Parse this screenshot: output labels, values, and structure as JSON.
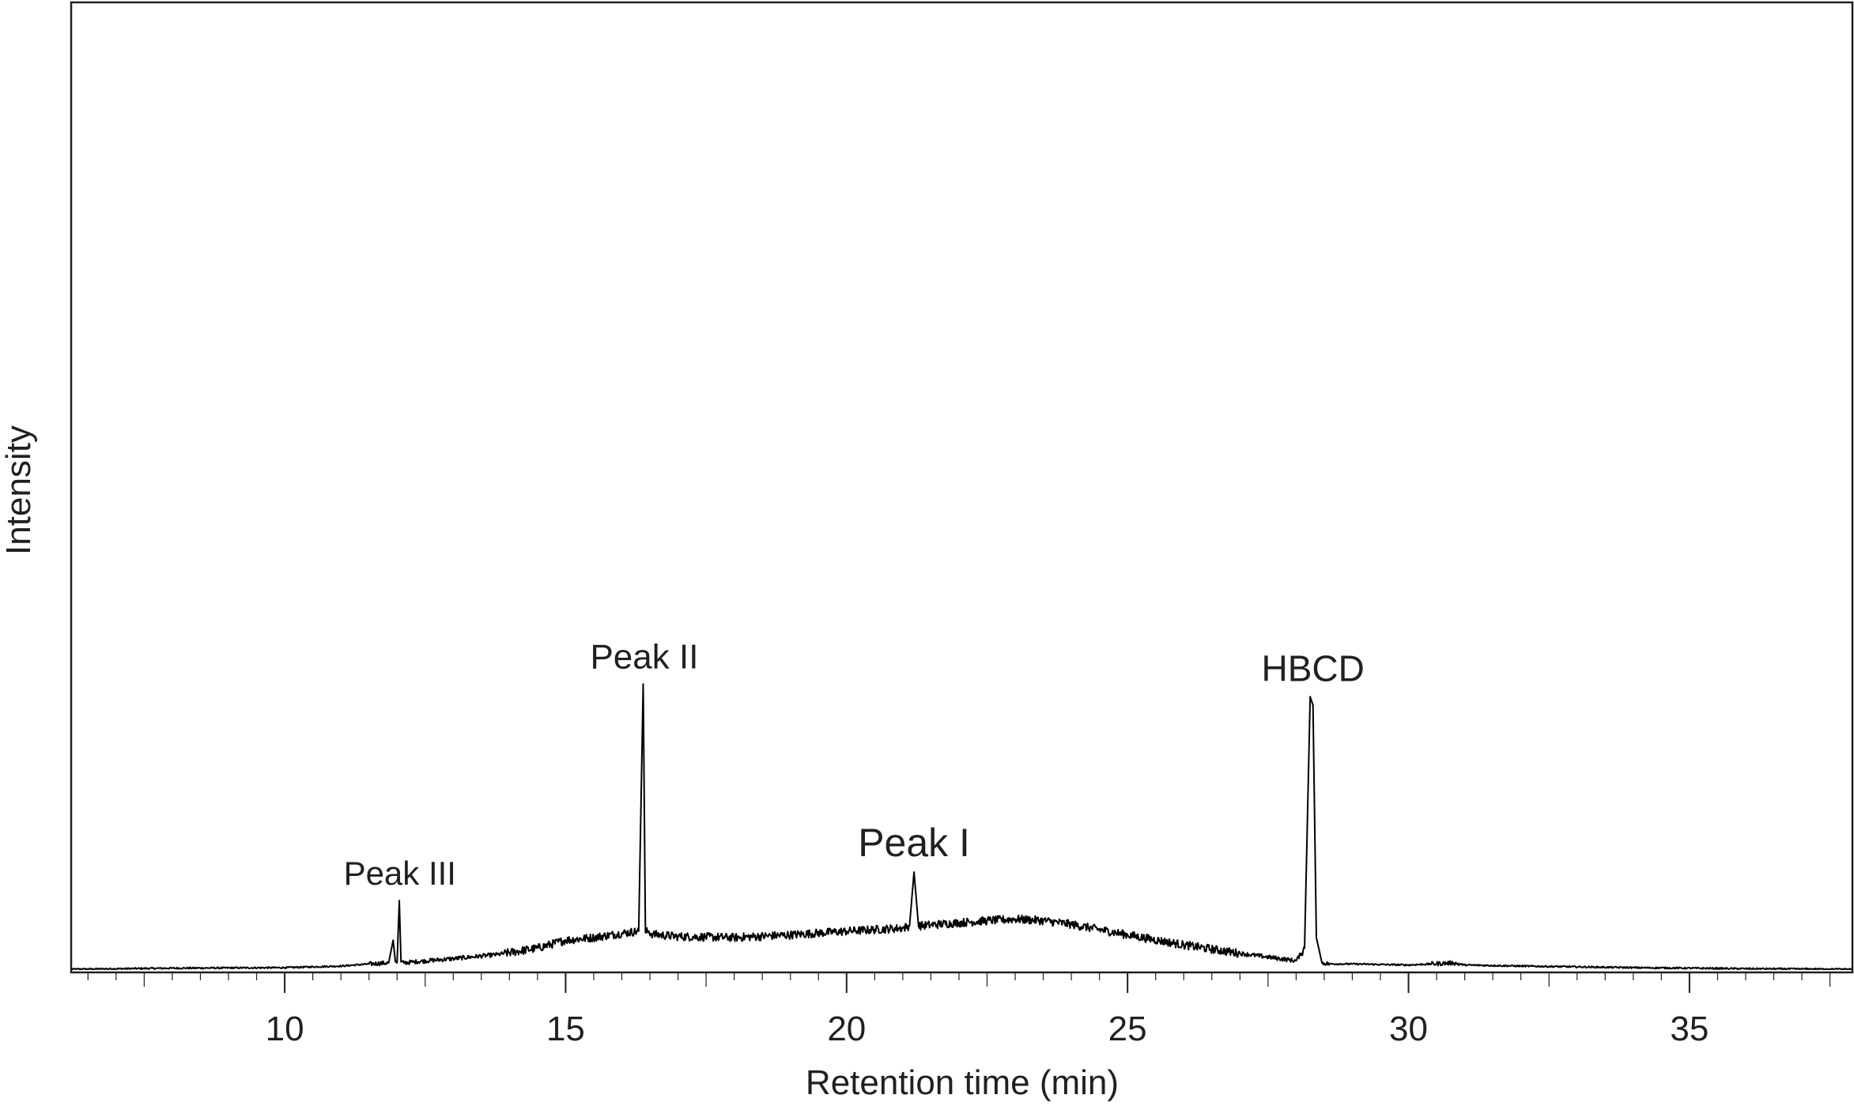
{
  "chart_data": {
    "type": "line",
    "title": "",
    "xlabel": "Retention  time (min)",
    "ylabel": "Intensity",
    "xlim": [
      6.2,
      37.9
    ],
    "ylim": [
      0,
      1000
    ],
    "x_ticks": [
      10,
      15,
      20,
      25,
      30,
      35
    ],
    "x_minor_step": 0.5,
    "y_ticks": [],
    "grid": false,
    "legend": "none",
    "line_color": "#000000",
    "annotations": [
      {
        "text": "Peak III",
        "x": 12.05,
        "y": 130
      },
      {
        "text": "Peak II",
        "x": 16.4,
        "y": 540
      },
      {
        "text": "Peak I",
        "x": 21.2,
        "y": 184
      },
      {
        "text": "HBCD",
        "x": 28.3,
        "y": 516
      }
    ],
    "series": [
      {
        "x": [
          6.2,
          8.0,
          10.0,
          11.0,
          11.5,
          11.85,
          11.93,
          11.97,
          12.0,
          12.04,
          12.07,
          12.12,
          12.3,
          13.0,
          13.8,
          14.5,
          15.0,
          15.5,
          16.0,
          16.3,
          16.38,
          16.42,
          16.47,
          16.55,
          17.0,
          18.0,
          19.0,
          20.0,
          21.0,
          21.12,
          21.2,
          21.28,
          21.5,
          22.0,
          22.5,
          23.0,
          23.5,
          24.0,
          25.0,
          26.0,
          27.0,
          28.0,
          28.15,
          28.25,
          28.3,
          28.36,
          28.46,
          28.6,
          29.0,
          30.0,
          30.8,
          31.0,
          32.0,
          34.0,
          36.0,
          37.9
        ],
        "y": [
          0,
          2,
          3,
          6,
          10,
          12,
          55,
          14,
          12,
          130,
          14,
          12,
          14,
          20,
          28,
          40,
          55,
          60,
          68,
          72,
          540,
          70,
          72,
          66,
          62,
          60,
          65,
          72,
          78,
          82,
          184,
          82,
          84,
          88,
          92,
          95,
          92,
          85,
          65,
          46,
          30,
          16,
          40,
          516,
          500,
          60,
          12,
          10,
          10,
          8,
          12,
          8,
          6,
          3,
          1,
          0
        ]
      }
    ]
  }
}
